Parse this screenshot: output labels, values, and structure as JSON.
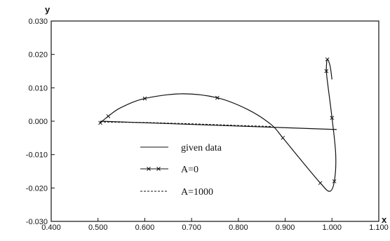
{
  "chart_data": {
    "type": "line",
    "title": "",
    "xlabel": "x",
    "ylabel": "y",
    "xlim": [
      0.4,
      1.1
    ],
    "ylim": [
      -0.03,
      0.03
    ],
    "x_ticks": [
      "0.400",
      "0.500",
      "0.600",
      "0.700",
      "0.800",
      "0.900",
      "1.000",
      "1.100"
    ],
    "y_ticks": [
      "-0.030",
      "-0.020",
      "-0.010",
      "0.000",
      "0.010",
      "0.020",
      "0.030"
    ],
    "grid": false,
    "legend_position": "lower-center",
    "series": [
      {
        "name": "given data",
        "style": "solid",
        "marker": "none",
        "x": [
          0.505,
          1.01
        ],
        "y": [
          0.0,
          -0.0025
        ]
      },
      {
        "name": "A=0",
        "style": "solid",
        "marker": "x",
        "x": [
          0.505,
          0.522,
          0.548,
          0.6,
          0.68,
          0.755,
          0.82,
          0.87,
          0.895,
          0.93,
          0.975,
          0.995,
          1.005,
          1.008,
          1.0,
          0.992,
          0.988,
          0.99,
          0.996,
          1.0
        ],
        "y": [
          -0.0005,
          0.0015,
          0.004,
          0.0068,
          0.0082,
          0.007,
          0.0035,
          -0.001,
          -0.005,
          -0.011,
          -0.0185,
          -0.021,
          -0.018,
          -0.01,
          0.001,
          0.01,
          0.015,
          0.0185,
          0.0165,
          0.0125
        ]
      },
      {
        "name": "A=1000",
        "style": "dashed",
        "marker": "none",
        "x": [
          0.505,
          0.6,
          0.7,
          0.8,
          0.87
        ],
        "y": [
          -0.0002,
          -0.0004,
          -0.0008,
          -0.0013,
          -0.0016
        ]
      }
    ],
    "colors": {
      "line": "#111111",
      "background": "#ffffff"
    }
  }
}
